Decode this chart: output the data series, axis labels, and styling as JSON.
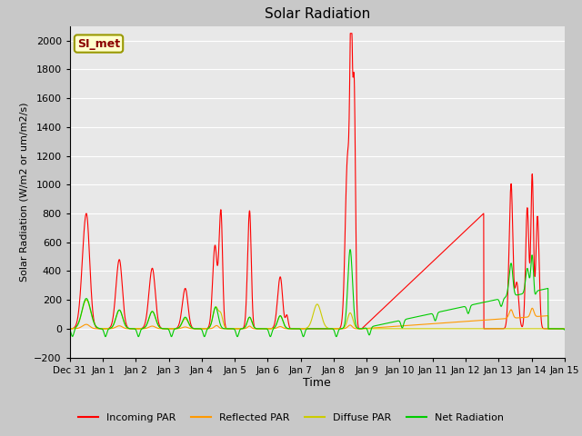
{
  "title": "Solar Radiation",
  "xlabel": "Time",
  "ylabel": "Solar Radiation (W/m2 or um/m2/s)",
  "ylim": [
    -200,
    2100
  ],
  "yticks": [
    -200,
    0,
    200,
    400,
    600,
    800,
    1000,
    1200,
    1400,
    1600,
    1800,
    2000
  ],
  "watermark": "SI_met",
  "legend_entries": [
    "Incoming PAR",
    "Reflected PAR",
    "Diffuse PAR",
    "Net Radiation"
  ],
  "line_colors": {
    "incoming": "#ff0000",
    "reflected": "#ff9900",
    "diffuse": "#cccc00",
    "net": "#00cc00"
  },
  "x_tick_labels": [
    "Dec 31",
    "Jan 1",
    "Jan 2",
    "Jan 3",
    "Jan 4",
    "Jan 5",
    "Jan 6",
    "Jan 7",
    "Jan 8",
    "Jan 9",
    "Jan 10",
    "Jan 11",
    "Jan 12",
    "Jan 13",
    "Jan 14",
    "Jan 15"
  ],
  "fig_background": "#c8c8c8",
  "axes_background": "#e8e8e8",
  "grid_color": "#ffffff"
}
